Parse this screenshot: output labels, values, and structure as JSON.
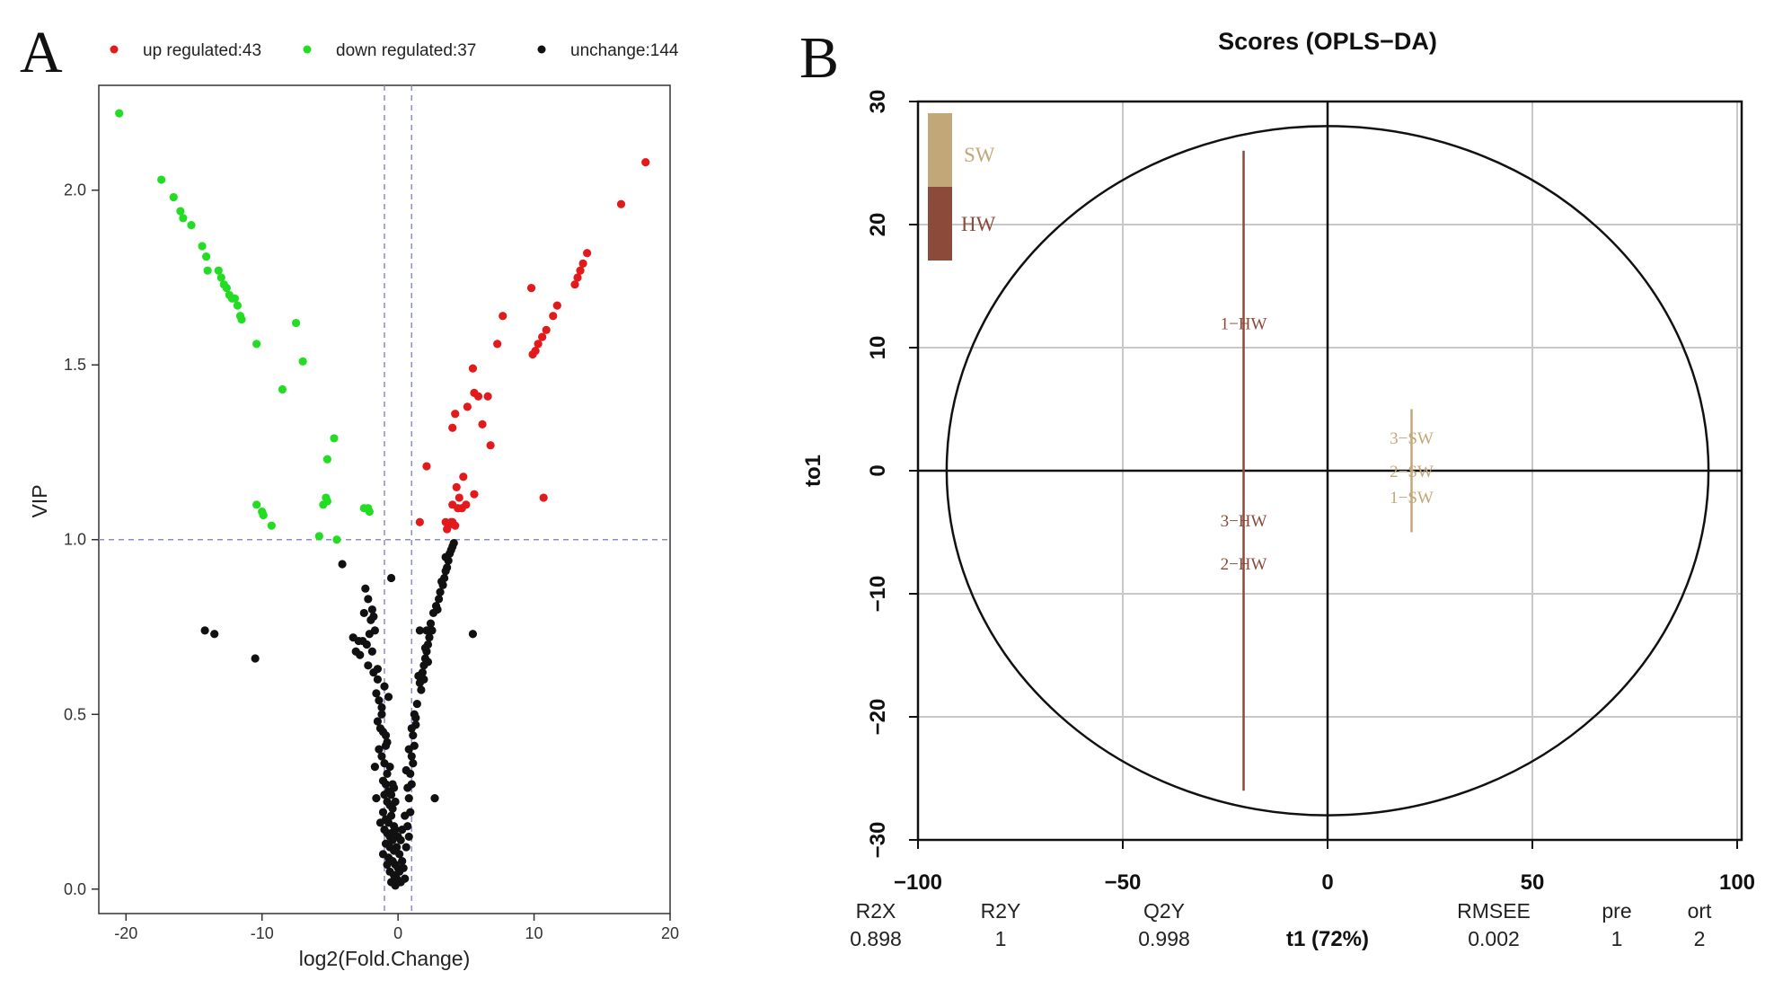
{
  "panel_a": {
    "letter": "A",
    "legend": [
      {
        "label": "up regulated:43",
        "color": "#e31a1c"
      },
      {
        "label": "down regulated:37",
        "color": "#22dd22"
      },
      {
        "label": "unchange:144",
        "color": "#111111"
      }
    ]
  },
  "panel_b": {
    "letter": "B",
    "title": "Scores (OPLS−DA)",
    "colors": {
      "SW": "#c2a878",
      "HW": "#8b4a3a"
    },
    "stats": {
      "headers": [
        "R2X",
        "R2Y",
        "Q2Y",
        "t1 (72%)",
        "RMSEE",
        "pre",
        "ort"
      ],
      "values": [
        "0.898",
        "1",
        "0.998",
        "",
        "0.002",
        "1",
        "2"
      ]
    }
  },
  "chart_data": [
    {
      "type": "scatter",
      "title": "",
      "xlabel": "log2(Fold.Change)",
      "ylabel": "VIP",
      "xlim": [
        -22,
        20
      ],
      "ylim": [
        -0.07,
        2.3
      ],
      "xticks": [
        -20,
        -10,
        0,
        10,
        20
      ],
      "yticks": [
        0.0,
        0.5,
        1.0,
        1.5,
        2.0
      ],
      "thresholds": {
        "x": [
          -1,
          1
        ],
        "y": 1.0
      },
      "legend_position": "top",
      "series": [
        {
          "name": "up regulated:43",
          "color": "#e31a1c",
          "points": [
            [
              18.2,
              2.08
            ],
            [
              16.4,
              1.96
            ],
            [
              13.9,
              1.82
            ],
            [
              13.6,
              1.79
            ],
            [
              13.4,
              1.77
            ],
            [
              13.2,
              1.75
            ],
            [
              13.0,
              1.73
            ],
            [
              11.7,
              1.67
            ],
            [
              11.4,
              1.64
            ],
            [
              10.9,
              1.6
            ],
            [
              10.6,
              1.58
            ],
            [
              10.3,
              1.56
            ],
            [
              10.1,
              1.54
            ],
            [
              9.9,
              1.53
            ],
            [
              9.8,
              1.72
            ],
            [
              7.7,
              1.64
            ],
            [
              7.3,
              1.56
            ],
            [
              6.6,
              1.41
            ],
            [
              5.5,
              1.49
            ],
            [
              5.6,
              1.42
            ],
            [
              5.9,
              1.41
            ],
            [
              6.2,
              1.33
            ],
            [
              6.8,
              1.27
            ],
            [
              5.1,
              1.38
            ],
            [
              4.2,
              1.36
            ],
            [
              4.0,
              1.32
            ],
            [
              4.8,
              1.18
            ],
            [
              4.3,
              1.15
            ],
            [
              4.5,
              1.12
            ],
            [
              4.0,
              1.1
            ],
            [
              4.4,
              1.09
            ],
            [
              4.7,
              1.09
            ],
            [
              5.0,
              1.1
            ],
            [
              5.6,
              1.13
            ],
            [
              4.0,
              1.05
            ],
            [
              4.2,
              1.04
            ],
            [
              3.9,
              1.05
            ],
            [
              3.7,
              1.04
            ],
            [
              3.6,
              1.03
            ],
            [
              3.5,
              1.05
            ],
            [
              2.1,
              1.21
            ],
            [
              1.6,
              1.05
            ],
            [
              10.7,
              1.12
            ]
          ]
        },
        {
          "name": "down regulated:37",
          "color": "#22dd22",
          "points": [
            [
              -20.5,
              2.22
            ],
            [
              -17.4,
              2.03
            ],
            [
              -16.5,
              1.98
            ],
            [
              -16.0,
              1.94
            ],
            [
              -15.8,
              1.92
            ],
            [
              -15.2,
              1.9
            ],
            [
              -14.4,
              1.84
            ],
            [
              -14.1,
              1.81
            ],
            [
              -14.0,
              1.77
            ],
            [
              -13.2,
              1.77
            ],
            [
              -13.0,
              1.75
            ],
            [
              -12.8,
              1.73
            ],
            [
              -12.6,
              1.72
            ],
            [
              -12.4,
              1.7
            ],
            [
              -12.2,
              1.69
            ],
            [
              -12.0,
              1.69
            ],
            [
              -11.8,
              1.67
            ],
            [
              -11.6,
              1.64
            ],
            [
              -11.5,
              1.63
            ],
            [
              -10.4,
              1.56
            ],
            [
              -7.5,
              1.62
            ],
            [
              -7.0,
              1.51
            ],
            [
              -8.5,
              1.43
            ],
            [
              -4.7,
              1.29
            ],
            [
              -5.2,
              1.23
            ],
            [
              -5.3,
              1.12
            ],
            [
              -5.2,
              1.11
            ],
            [
              -2.2,
              1.09
            ],
            [
              -2.1,
              1.08
            ],
            [
              -10.4,
              1.1
            ],
            [
              -9.9,
              1.07
            ],
            [
              -9.3,
              1.04
            ],
            [
              -5.8,
              1.01
            ],
            [
              -4.5,
              1.0
            ],
            [
              -2.5,
              1.09
            ],
            [
              -5.5,
              1.1
            ],
            [
              -10.0,
              1.08
            ]
          ]
        },
        {
          "name": "unchange:144",
          "color": "#111111",
          "points": [
            [
              -14.2,
              0.74
            ],
            [
              -13.5,
              0.73
            ],
            [
              -10.5,
              0.66
            ],
            [
              -4.1,
              0.93
            ],
            [
              -2.4,
              0.86
            ],
            [
              -2.2,
              0.83
            ],
            [
              -1.9,
              0.8
            ],
            [
              -1.8,
              0.78
            ],
            [
              -2.0,
              0.77
            ],
            [
              -1.7,
              0.74
            ],
            [
              -2.9,
              0.71
            ],
            [
              -2.6,
              0.71
            ],
            [
              -2.3,
              0.7
            ],
            [
              -3.1,
              0.68
            ],
            [
              -2.8,
              0.67
            ],
            [
              -2.2,
              0.64
            ],
            [
              -1.8,
              0.62
            ],
            [
              -1.5,
              0.6
            ],
            [
              -1.0,
              0.58
            ],
            [
              -0.5,
              0.89
            ],
            [
              -1.6,
              0.56
            ],
            [
              -1.4,
              0.54
            ],
            [
              -1.2,
              0.52
            ],
            [
              -0.7,
              0.55
            ],
            [
              -1.5,
              0.48
            ],
            [
              -1.3,
              0.46
            ],
            [
              -1.1,
              0.45
            ],
            [
              -0.9,
              0.44
            ],
            [
              -0.8,
              0.42
            ],
            [
              -1.4,
              0.4
            ],
            [
              -1.2,
              0.38
            ],
            [
              -1.0,
              0.36
            ],
            [
              -0.6,
              0.35
            ],
            [
              -0.8,
              0.33
            ],
            [
              -1.1,
              0.31
            ],
            [
              -0.9,
              0.3
            ],
            [
              -0.7,
              0.28
            ],
            [
              -0.5,
              0.27
            ],
            [
              -0.3,
              0.29
            ],
            [
              -1.0,
              0.27
            ],
            [
              -0.8,
              0.25
            ],
            [
              -0.6,
              0.24
            ],
            [
              -0.4,
              0.23
            ],
            [
              -1.1,
              0.22
            ],
            [
              -0.9,
              0.2
            ],
            [
              -0.7,
              0.19
            ],
            [
              -0.5,
              0.21
            ],
            [
              -0.3,
              0.18
            ],
            [
              -1.0,
              0.17
            ],
            [
              -0.8,
              0.16
            ],
            [
              -0.6,
              0.15
            ],
            [
              -0.4,
              0.14
            ],
            [
              -0.2,
              0.17
            ],
            [
              -0.9,
              0.13
            ],
            [
              -0.6,
              0.12
            ],
            [
              -0.3,
              0.11
            ],
            [
              -0.1,
              0.12
            ],
            [
              0.1,
              0.1
            ],
            [
              -0.7,
              0.09
            ],
            [
              -0.4,
              0.08
            ],
            [
              -0.2,
              0.07
            ],
            [
              0.0,
              0.06
            ],
            [
              -0.6,
              0.05
            ],
            [
              -0.3,
              0.04
            ],
            [
              -0.1,
              0.03
            ],
            [
              0.1,
              0.05
            ],
            [
              0.3,
              0.08
            ],
            [
              -0.5,
              0.02
            ],
            [
              -0.2,
              0.01
            ],
            [
              0.2,
              0.02
            ],
            [
              0.5,
              0.03
            ],
            [
              0.6,
              0.12
            ],
            [
              0.8,
              0.15
            ],
            [
              0.7,
              0.18
            ],
            [
              0.9,
              0.22
            ],
            [
              0.8,
              0.26
            ],
            [
              1.0,
              0.3
            ],
            [
              0.9,
              0.33
            ],
            [
              1.1,
              0.36
            ],
            [
              1.0,
              0.38
            ],
            [
              1.2,
              0.41
            ],
            [
              1.1,
              0.44
            ],
            [
              1.3,
              0.47
            ],
            [
              1.2,
              0.5
            ],
            [
              1.4,
              0.53
            ],
            [
              1.6,
              0.59
            ],
            [
              1.8,
              0.62
            ],
            [
              1.9,
              0.64
            ],
            [
              2.0,
              0.66
            ],
            [
              2.1,
              0.68
            ],
            [
              2.2,
              0.7
            ],
            [
              2.3,
              0.72
            ],
            [
              2.1,
              0.74
            ],
            [
              2.4,
              0.76
            ],
            [
              2.6,
              0.79
            ],
            [
              2.8,
              0.81
            ],
            [
              3.0,
              0.83
            ],
            [
              3.1,
              0.85
            ],
            [
              3.3,
              0.87
            ],
            [
              3.4,
              0.89
            ],
            [
              3.5,
              0.91
            ],
            [
              3.6,
              0.92
            ],
            [
              3.7,
              0.94
            ],
            [
              3.8,
              0.96
            ],
            [
              3.9,
              0.97
            ],
            [
              4.0,
              0.98
            ],
            [
              4.1,
              0.99
            ],
            [
              1.6,
              0.74
            ],
            [
              2.7,
              0.26
            ],
            [
              5.5,
              0.73
            ],
            [
              1.5,
              0.61
            ],
            [
              1.9,
              0.6
            ],
            [
              2.2,
              0.65
            ],
            [
              0.5,
              0.21
            ],
            [
              0.7,
              0.29
            ],
            [
              -0.2,
              0.25
            ],
            [
              0.0,
              0.15
            ],
            [
              0.3,
              0.17
            ],
            [
              -1.3,
              0.19
            ],
            [
              -1.6,
              0.26
            ],
            [
              -1.7,
              0.35
            ],
            [
              -1.5,
              0.63
            ],
            [
              -3.3,
              0.72
            ],
            [
              -2.5,
              0.79
            ],
            [
              3.2,
              0.88
            ],
            [
              3.5,
              0.95
            ],
            [
              2.9,
              0.8
            ],
            [
              2.5,
              0.74
            ],
            [
              2.0,
              0.69
            ],
            [
              1.7,
              0.57
            ],
            [
              1.3,
              0.49
            ],
            [
              1.0,
              0.46
            ],
            [
              0.8,
              0.4
            ],
            [
              0.6,
              0.34
            ],
            [
              -0.9,
              0.41
            ],
            [
              -1.2,
              0.5
            ],
            [
              -1.9,
              0.68
            ],
            [
              -2.1,
              0.73
            ],
            [
              -0.4,
              0.3
            ],
            [
              0.2,
              0.14
            ],
            [
              -0.5,
              0.16
            ],
            [
              -1.1,
              0.1
            ],
            [
              0.4,
              0.06
            ],
            [
              -0.8,
              0.07
            ]
          ]
        }
      ]
    },
    {
      "type": "scatter",
      "title": "Scores (OPLS−DA)",
      "xlabel": "t1 (72%)",
      "ylabel": "to1",
      "xlim": [
        -100,
        100
      ],
      "ylim": [
        -30,
        30
      ],
      "xticks": [
        -100,
        -50,
        0,
        50,
        100
      ],
      "yticks": [
        -30,
        -20,
        -10,
        0,
        10,
        20,
        30
      ],
      "grid": true,
      "ellipse": {
        "rx": 93,
        "ry": 28
      },
      "legend_position": "top-left",
      "legend": [
        {
          "label": "SW",
          "color": "#c2a878"
        },
        {
          "label": "HW",
          "color": "#8b4a3a"
        }
      ],
      "groups": [
        {
          "name": "HW",
          "color": "#8b4a3a",
          "x": -20.5,
          "y_range": [
            -26,
            26
          ],
          "points": [
            {
              "label": "1−HW",
              "x": -20.5,
              "y": 12
            },
            {
              "label": "3−HW",
              "x": -20.5,
              "y": -4
            },
            {
              "label": "2−HW",
              "x": -20.5,
              "y": -7.5
            }
          ]
        },
        {
          "name": "SW",
          "color": "#c2a878",
          "x": 20.5,
          "y_range": [
            -5,
            5
          ],
          "points": [
            {
              "label": "3−SW",
              "x": 20.5,
              "y": 2.7
            },
            {
              "label": "2−SW",
              "x": 20.5,
              "y": 0
            },
            {
              "label": "1−SW",
              "x": 20.5,
              "y": -2.1
            }
          ]
        }
      ]
    }
  ]
}
